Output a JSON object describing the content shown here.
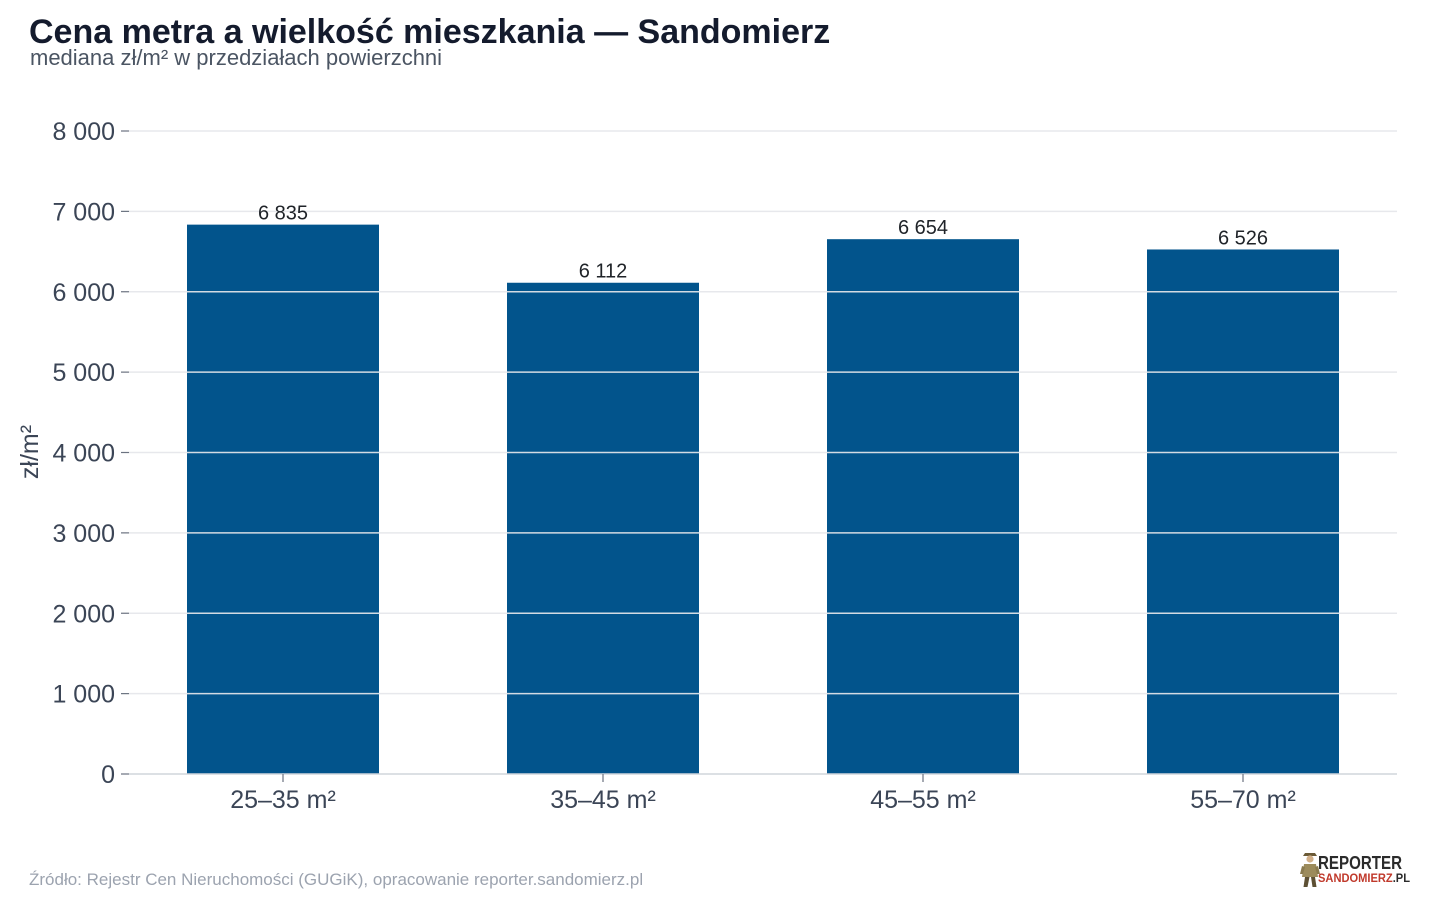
{
  "chart_data": {
    "type": "bar",
    "title": "Cena metra a wielkość mieszkania — Sandomierz",
    "subtitle": "mediana zł/m² w przedziałach powierzchni",
    "categories": [
      "25–35 m²",
      "35–45 m²",
      "45–55 m²",
      "55–70 m²"
    ],
    "values": [
      6835,
      6112,
      6654,
      6526
    ],
    "value_labels": [
      "6 835",
      "6 112",
      "6 654",
      "6 526"
    ],
    "xlabel": "",
    "ylabel": "zł/m²",
    "ylim": [
      0,
      8000
    ],
    "yticks": [
      0,
      1000,
      2000,
      3000,
      4000,
      5000,
      6000,
      7000,
      8000
    ],
    "ytick_labels": [
      "0",
      "1 000",
      "2 000",
      "3 000",
      "4 000",
      "5 000",
      "6 000",
      "7 000",
      "8 000"
    ],
    "grid": true,
    "colors": {
      "bar": "#02548c"
    }
  },
  "footer": {
    "source": "Źródło: Rejestr Cen Nieruchomości (GUGiK), opracowanie reporter.sandomierz.pl"
  },
  "logo": {
    "name": "REPORTER",
    "domain": "SANDOMIERZ",
    "tld": ".PL",
    "icon": "reporter-figure-icon"
  }
}
